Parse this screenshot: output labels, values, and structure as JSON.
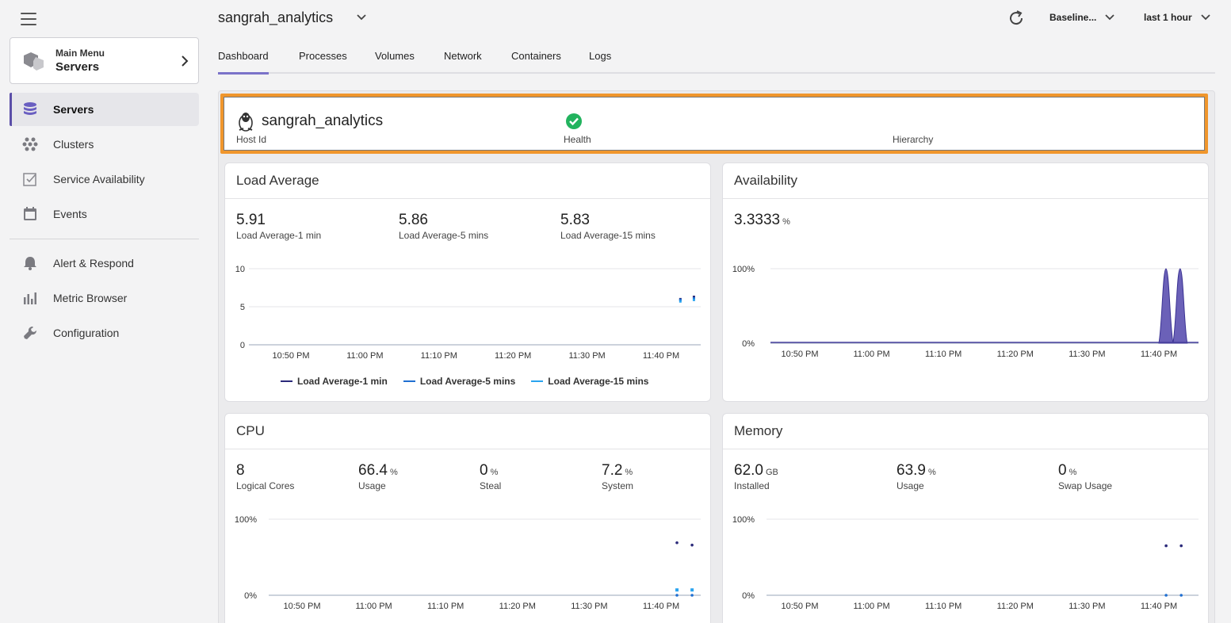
{
  "sidebar": {
    "main_menu": {
      "label": "Main Menu",
      "current": "Servers"
    },
    "items": [
      {
        "label": "Servers",
        "icon": "database-icon",
        "active": true
      },
      {
        "label": "Clusters",
        "icon": "cluster-icon"
      },
      {
        "label": "Service Availability",
        "icon": "checkbox-icon"
      },
      {
        "label": "Events",
        "icon": "calendar-icon"
      },
      {
        "label": "Alert & Respond",
        "icon": "bell-icon"
      },
      {
        "label": "Metric Browser",
        "icon": "bar-chart-icon"
      },
      {
        "label": "Configuration",
        "icon": "wrench-icon"
      }
    ]
  },
  "header": {
    "title": "sangrah_analytics",
    "baseline": "Baseline...",
    "time_range": "last 1 hour"
  },
  "tabs": [
    "Dashboard",
    "Processes",
    "Volumes",
    "Network",
    "Containers",
    "Logs"
  ],
  "host": {
    "host_id": "sangrah_analytics",
    "host_id_label": "Host Id",
    "health_label": "Health",
    "hierarchy_label": "Hierarchy"
  },
  "panels": {
    "load": {
      "title": "Load Average",
      "stats": [
        {
          "value": "5.91",
          "label": "Load Average-1 min"
        },
        {
          "value": "5.86",
          "label": "Load Average-5 mins"
        },
        {
          "value": "5.83",
          "label": "Load Average-15 mins"
        }
      ]
    },
    "availability": {
      "title": "Availability",
      "stats": [
        {
          "value": "3.3333",
          "unit": "%"
        }
      ]
    },
    "cpu": {
      "title": "CPU",
      "stats": [
        {
          "value": "8",
          "unit": "",
          "label": "Logical Cores"
        },
        {
          "value": "66.4",
          "unit": "%",
          "label": "Usage"
        },
        {
          "value": "0",
          "unit": "%",
          "label": "Steal"
        },
        {
          "value": "7.2",
          "unit": "%",
          "label": "System"
        }
      ]
    },
    "memory": {
      "title": "Memory",
      "stats": [
        {
          "value": "62.0",
          "unit": "GB",
          "label": "Installed"
        },
        {
          "value": "63.9",
          "unit": "%",
          "label": "Usage"
        },
        {
          "value": "0",
          "unit": "%",
          "label": "Swap Usage"
        }
      ]
    }
  },
  "colors": {
    "accent": "#5b4fa8",
    "highlight": "#f0962c",
    "health_ok": "#22b35e",
    "series_dark": "#2b2a7a",
    "series_mid": "#1f6fd1",
    "series_light": "#29a3ef"
  },
  "chart_data": [
    {
      "type": "line",
      "name": "load",
      "x_ticks": [
        "10:50 PM",
        "11:00 PM",
        "11:10 PM",
        "11:20 PM",
        "11:30 PM",
        "11:40 PM"
      ],
      "y_ticks": [
        "0",
        "5",
        "10"
      ],
      "ylim": [
        0,
        10
      ],
      "series": [
        {
          "name": "Load Average-1 min",
          "points": [
            [
              0.955,
              6.0
            ],
            [
              0.985,
              6.3
            ]
          ]
        },
        {
          "name": "Load Average-5 mins",
          "points": [
            [
              0.955,
              5.9
            ],
            [
              0.985,
              6.1
            ]
          ]
        },
        {
          "name": "Load Average-15 mins",
          "points": [
            [
              0.955,
              5.7
            ],
            [
              0.985,
              5.9
            ]
          ]
        }
      ],
      "legend": "bottom"
    },
    {
      "type": "area",
      "name": "availability",
      "x_ticks": [
        "10:50 PM",
        "11:00 PM",
        "11:10 PM",
        "11:20 PM",
        "11:30 PM",
        "11:40 PM"
      ],
      "y_ticks": [
        "0%",
        "100%"
      ],
      "ylim": [
        0,
        100
      ],
      "peaks": [
        0.924,
        0.957
      ]
    },
    {
      "type": "scatter",
      "name": "cpu",
      "x_ticks": [
        "10:50 PM",
        "11:00 PM",
        "11:10 PM",
        "11:20 PM",
        "11:30 PM",
        "11:40 PM"
      ],
      "y_ticks": [
        "0%",
        "100%"
      ],
      "ylim": [
        0,
        100
      ],
      "series": [
        {
          "name": "Usage",
          "points": [
            [
              0.945,
              69
            ],
            [
              0.98,
              66
            ]
          ]
        },
        {
          "name": "System",
          "points": [
            [
              0.945,
              7
            ],
            [
              0.98,
              7
            ]
          ]
        },
        {
          "name": "Steal",
          "points": [
            [
              0.945,
              0
            ],
            [
              0.98,
              0
            ]
          ]
        }
      ]
    },
    {
      "type": "scatter",
      "name": "memory",
      "x_ticks": [
        "10:50 PM",
        "11:00 PM",
        "11:10 PM",
        "11:20 PM",
        "11:30 PM",
        "11:40 PM"
      ],
      "y_ticks": [
        "0%",
        "100%"
      ],
      "ylim": [
        0,
        100
      ],
      "series": [
        {
          "name": "Usage",
          "points": [
            [
              0.925,
              65
            ],
            [
              0.96,
              65
            ]
          ]
        },
        {
          "name": "Swap Usage",
          "points": [
            [
              0.925,
              0
            ],
            [
              0.96,
              0
            ]
          ]
        }
      ]
    }
  ]
}
